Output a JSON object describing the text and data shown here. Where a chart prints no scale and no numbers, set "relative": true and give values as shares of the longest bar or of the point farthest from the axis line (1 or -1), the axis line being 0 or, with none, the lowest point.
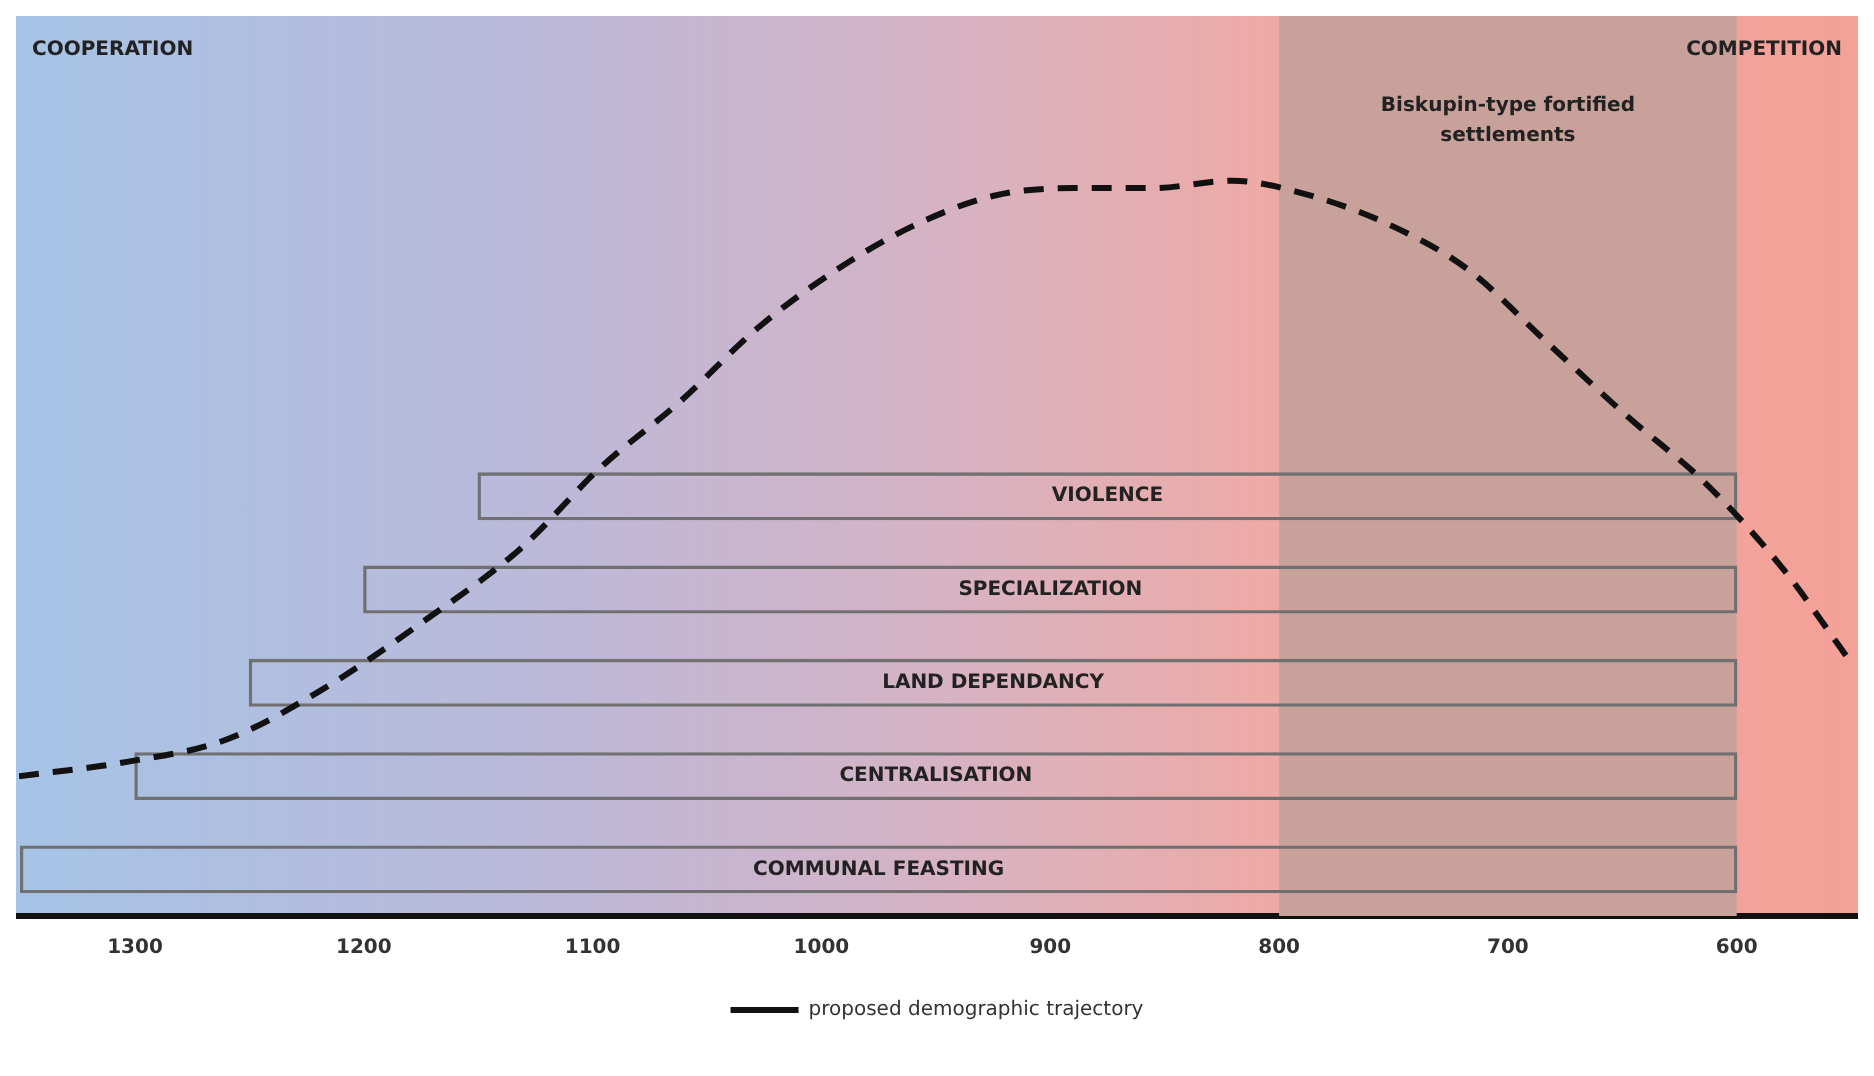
{
  "chart_data": [
    {
      "type": "bar",
      "orientation": "horizontal",
      "categories": [
        "VIOLENCE",
        "SPECIALIZATION",
        "LAND DEPENDANCY",
        "CENTRALISATION",
        "COMMUNAL FEASTING"
      ],
      "color": "#707070",
      "base": [
        600,
        600,
        600,
        600,
        600
      ],
      "values": [
        550,
        600,
        650,
        700,
        750
      ],
      "xlim": [
        1352,
        547
      ],
      "xticks": [
        1300,
        1200,
        1100,
        1000,
        900,
        800,
        700,
        600
      ],
      "grid": false,
      "bands": [
        {
          "axis": "x",
          "from": 800,
          "to": 600,
          "label": "Biskupin-type fortified settlements",
          "color": "#c9a19b"
        }
      ],
      "annotations": [
        "COOPERATION",
        "COMPETITION"
      ]
    },
    {
      "type": "line",
      "relative": true,
      "xlim": [
        1352,
        547
      ],
      "tick_labels": false,
      "grid": false,
      "legend": "bottom",
      "line_style": "dashed",
      "series": [
        {
          "name": "proposed demographic trajectory",
          "color": "#111111",
          "x": [
            1352,
            1304,
            1261,
            1218,
            1175,
            1132,
            1097,
            1062,
            1028,
            993,
            959,
            924,
            889,
            855,
            820,
            786,
            751,
            717,
            682,
            647,
            613,
            578,
            550
          ],
          "values": [
            0.19,
            0.21,
            0.24,
            0.31,
            0.4,
            0.5,
            0.61,
            0.7,
            0.8,
            0.88,
            0.94,
            0.98,
            0.99,
            0.99,
            1,
            0.98,
            0.94,
            0.88,
            0.78,
            0.68,
            0.59,
            0.47,
            0.35
          ]
        }
      ]
    }
  ]
}
